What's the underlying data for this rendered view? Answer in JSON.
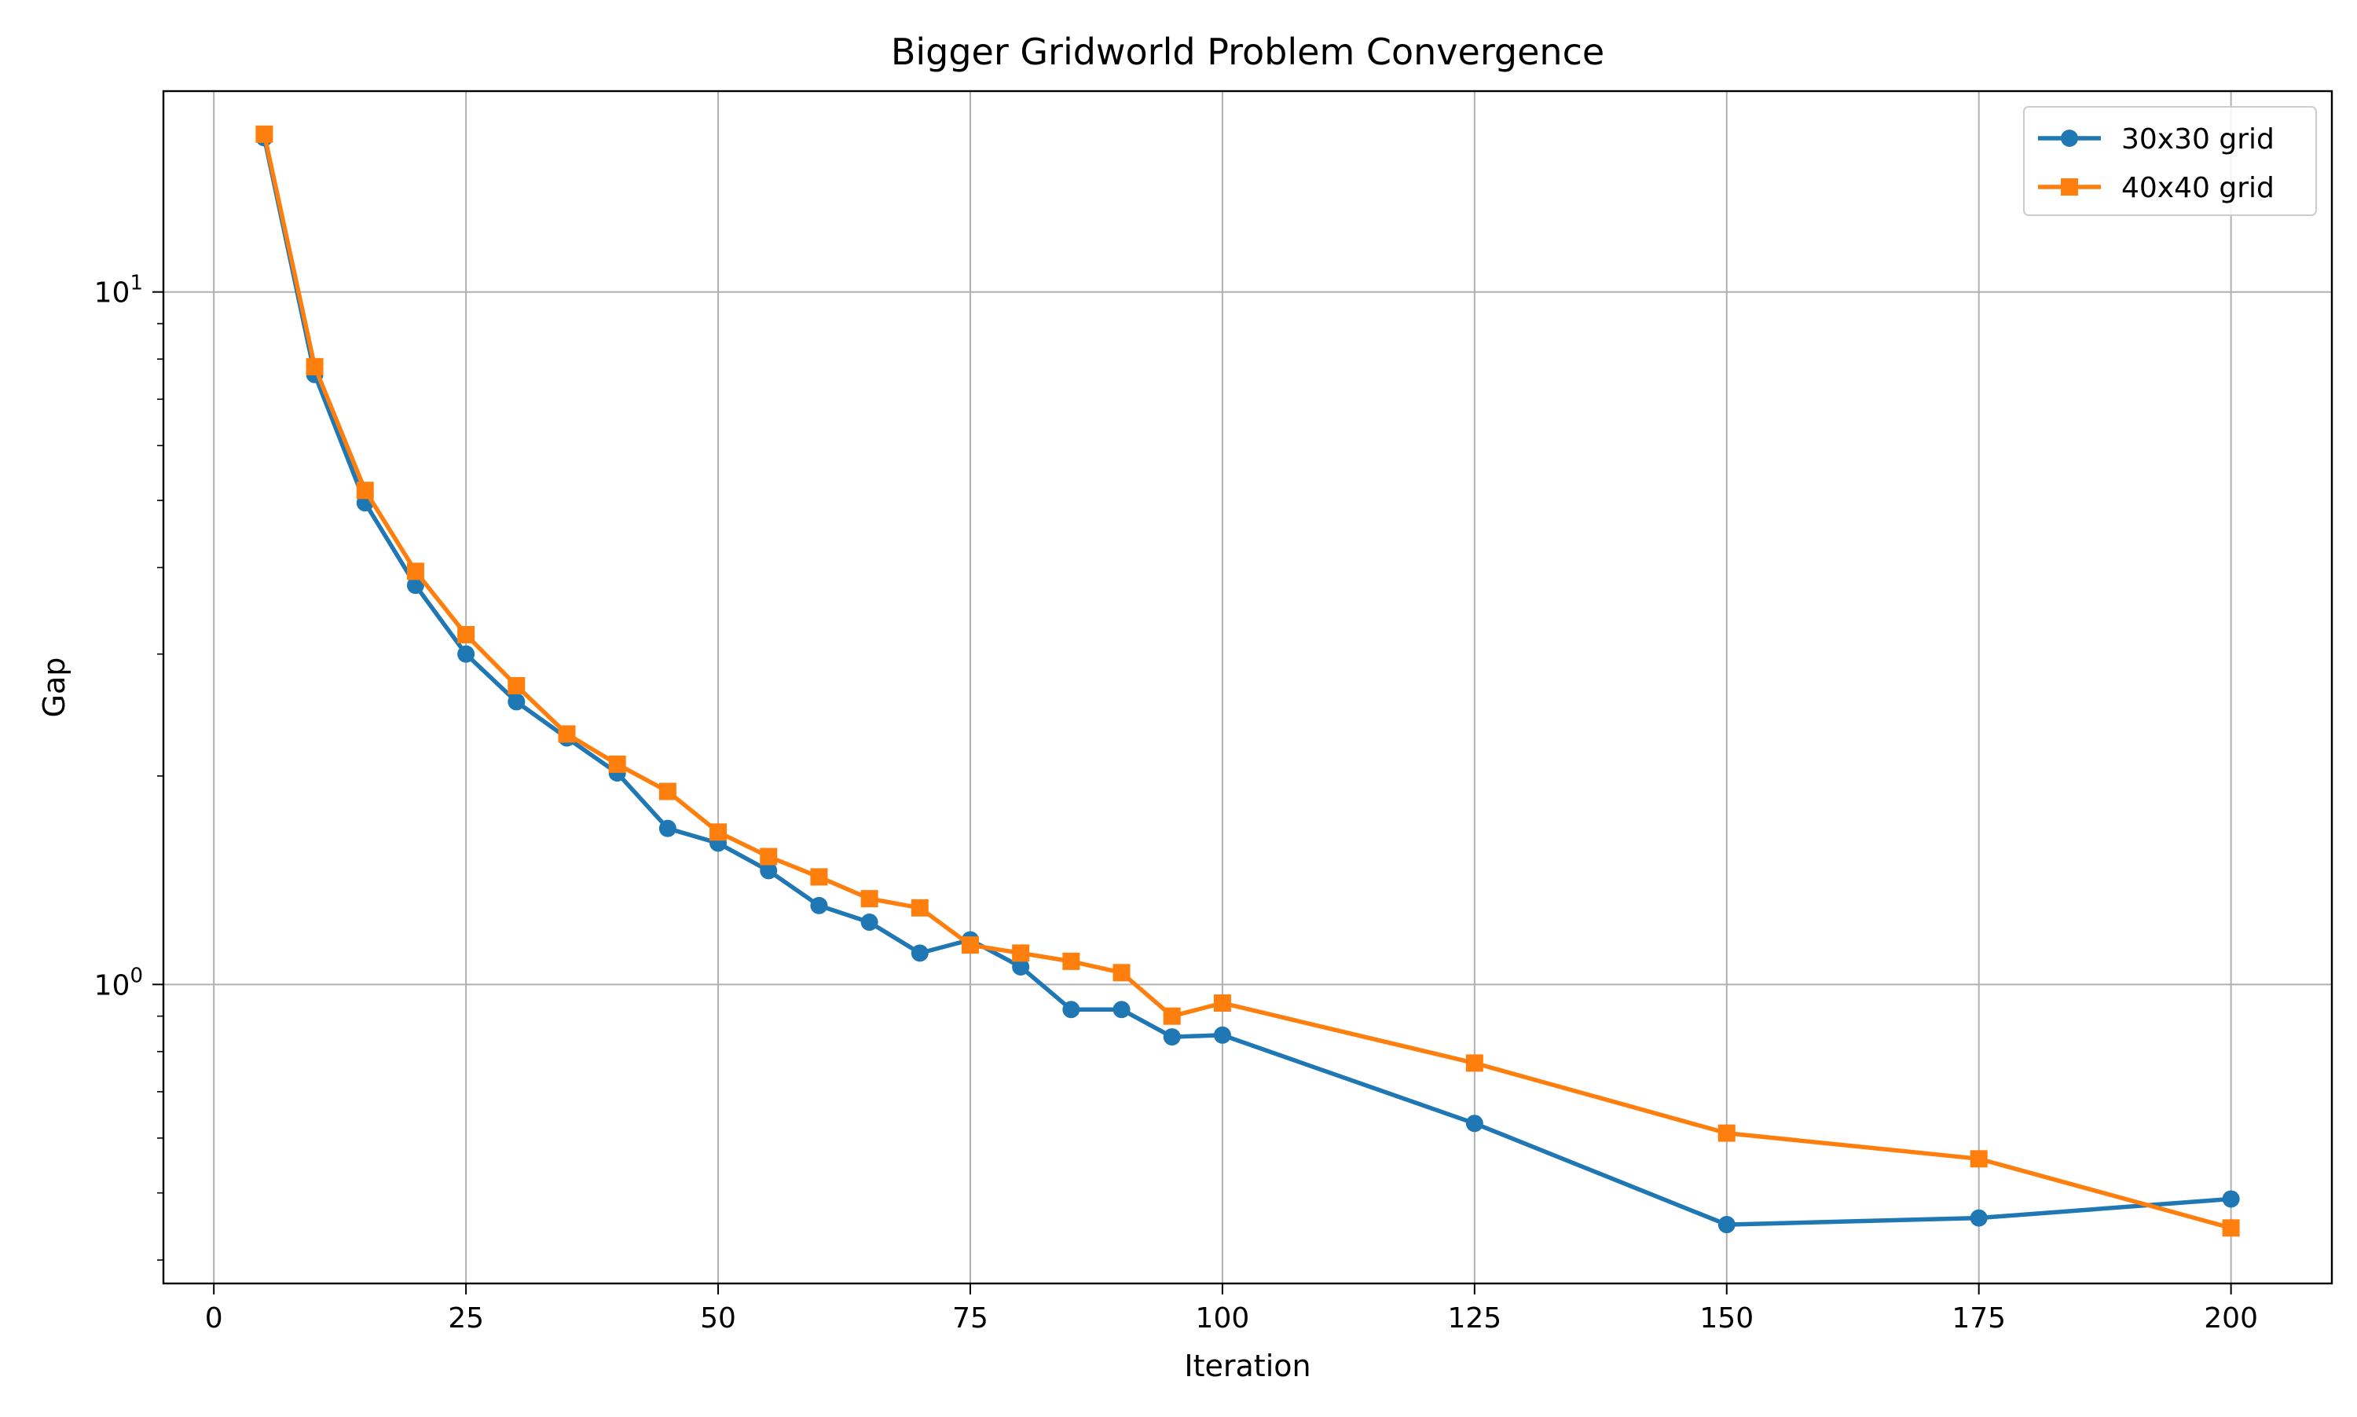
{
  "chart_data": {
    "type": "line",
    "title": "Bigger Gridworld Problem Convergence",
    "xlabel": "Iteration",
    "ylabel": "Gap",
    "xlim": [
      -5,
      210
    ],
    "ylim": [
      0.37,
      19.5
    ],
    "yscale": "log",
    "grid": true,
    "legend_position": "top-right",
    "x_ticks": [
      {
        "value": 0,
        "label": "0"
      },
      {
        "value": 25,
        "label": "25"
      },
      {
        "value": 50,
        "label": "50"
      },
      {
        "value": 75,
        "label": "75"
      },
      {
        "value": 100,
        "label": "100"
      },
      {
        "value": 125,
        "label": "125"
      },
      {
        "value": 150,
        "label": "150"
      },
      {
        "value": 175,
        "label": "175"
      },
      {
        "value": 200,
        "label": "200"
      }
    ],
    "y_ticks": [
      {
        "value": 1,
        "base": "10",
        "exponent": "0"
      },
      {
        "value": 10,
        "base": "10",
        "exponent": "1"
      }
    ],
    "series": [
      {
        "name": "30x30 grid",
        "color": "#1f77b4",
        "marker": "circle",
        "x": [
          5,
          10,
          15,
          20,
          25,
          30,
          35,
          40,
          45,
          50,
          55,
          60,
          65,
          70,
          75,
          80,
          85,
          90,
          95,
          100,
          125,
          150,
          175,
          200
        ],
        "values": [
          16.7,
          7.6,
          4.96,
          3.77,
          3.0,
          2.56,
          2.27,
          2.02,
          1.68,
          1.6,
          1.46,
          1.3,
          1.23,
          1.11,
          1.16,
          1.06,
          0.92,
          0.92,
          0.84,
          0.845,
          0.63,
          0.45,
          0.46,
          0.49
        ]
      },
      {
        "name": "40x40 grid",
        "color": "#ff7f0e",
        "marker": "square",
        "x": [
          5,
          10,
          15,
          20,
          25,
          30,
          35,
          40,
          45,
          50,
          55,
          60,
          65,
          70,
          75,
          80,
          85,
          90,
          95,
          100,
          125,
          150,
          175,
          200
        ],
        "values": [
          16.9,
          7.8,
          5.17,
          3.95,
          3.2,
          2.7,
          2.3,
          2.08,
          1.9,
          1.66,
          1.53,
          1.43,
          1.33,
          1.29,
          1.14,
          1.11,
          1.08,
          1.04,
          0.9,
          0.94,
          0.77,
          0.61,
          0.56,
          0.445
        ]
      }
    ]
  }
}
